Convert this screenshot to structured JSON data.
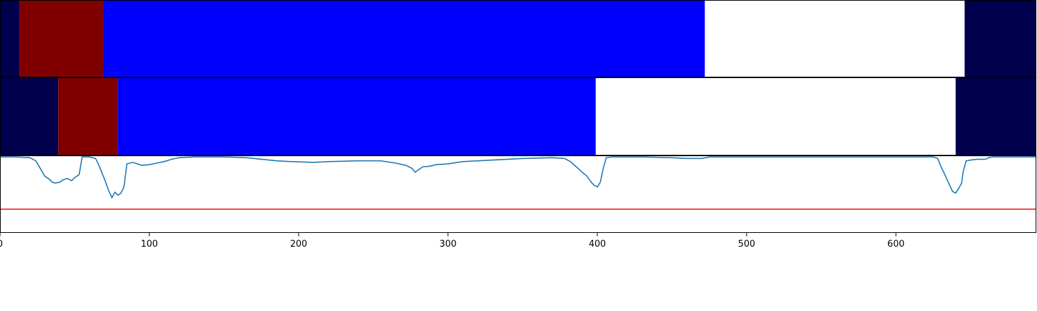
{
  "chart_data": [
    {
      "type": "bar",
      "orientation": "horizontal-segments",
      "xlim": [
        0,
        694
      ],
      "segments": [
        {
          "start": 0,
          "end": 13,
          "color": "#00004c"
        },
        {
          "start": 13,
          "end": 69,
          "color": "#800000"
        },
        {
          "start": 69,
          "end": 472,
          "color": "#0000ff"
        },
        {
          "start": 472,
          "end": 646,
          "color": "#ffffff"
        },
        {
          "start": 646,
          "end": 694,
          "color": "#00004c"
        }
      ]
    },
    {
      "type": "bar",
      "orientation": "horizontal-segments",
      "xlim": [
        0,
        694
      ],
      "segments": [
        {
          "start": 0,
          "end": 39,
          "color": "#00004c"
        },
        {
          "start": 39,
          "end": 79,
          "color": "#800000"
        },
        {
          "start": 79,
          "end": 399,
          "color": "#0000ff"
        },
        {
          "start": 399,
          "end": 640,
          "color": "#ffffff"
        },
        {
          "start": 640,
          "end": 694,
          "color": "#00004c"
        }
      ]
    },
    {
      "type": "line",
      "xlim": [
        0,
        694
      ],
      "ylim": [
        0,
        1
      ],
      "x_ticks": [
        0,
        100,
        200,
        300,
        400,
        500,
        600
      ],
      "x_tick_labels": [
        "0",
        "100",
        "200",
        "300",
        "400",
        "500",
        "600"
      ],
      "threshold": {
        "y": 0.31,
        "color": "#ff0000"
      },
      "line_color": "#1f77b4",
      "points": [
        [
          0,
          0.99
        ],
        [
          10,
          0.99
        ],
        [
          20,
          0.98
        ],
        [
          24,
          0.94
        ],
        [
          27,
          0.84
        ],
        [
          30,
          0.74
        ],
        [
          33,
          0.7
        ],
        [
          35,
          0.66
        ],
        [
          37,
          0.65
        ],
        [
          40,
          0.66
        ],
        [
          42,
          0.69
        ],
        [
          45,
          0.71
        ],
        [
          48,
          0.68
        ],
        [
          50,
          0.72
        ],
        [
          53,
          0.76
        ],
        [
          55,
          0.99
        ],
        [
          60,
          0.99
        ],
        [
          64,
          0.97
        ],
        [
          66,
          0.89
        ],
        [
          70,
          0.7
        ],
        [
          73,
          0.54
        ],
        [
          75,
          0.46
        ],
        [
          77,
          0.53
        ],
        [
          79,
          0.49
        ],
        [
          81,
          0.52
        ],
        [
          83,
          0.6
        ],
        [
          85,
          0.9
        ],
        [
          89,
          0.92
        ],
        [
          92,
          0.9
        ],
        [
          95,
          0.88
        ],
        [
          100,
          0.89
        ],
        [
          105,
          0.91
        ],
        [
          110,
          0.93
        ],
        [
          115,
          0.96
        ],
        [
          120,
          0.98
        ],
        [
          130,
          0.99
        ],
        [
          150,
          0.99
        ],
        [
          165,
          0.98
        ],
        [
          175,
          0.96
        ],
        [
          185,
          0.94
        ],
        [
          195,
          0.93
        ],
        [
          210,
          0.92
        ],
        [
          220,
          0.93
        ],
        [
          240,
          0.94
        ],
        [
          255,
          0.94
        ],
        [
          265,
          0.91
        ],
        [
          272,
          0.88
        ],
        [
          276,
          0.84
        ],
        [
          278,
          0.79
        ],
        [
          280,
          0.82
        ],
        [
          283,
          0.86
        ],
        [
          288,
          0.87
        ],
        [
          292,
          0.89
        ],
        [
          300,
          0.9
        ],
        [
          310,
          0.93
        ],
        [
          330,
          0.95
        ],
        [
          350,
          0.97
        ],
        [
          370,
          0.98
        ],
        [
          378,
          0.97
        ],
        [
          382,
          0.93
        ],
        [
          386,
          0.86
        ],
        [
          390,
          0.79
        ],
        [
          393,
          0.74
        ],
        [
          396,
          0.66
        ],
        [
          398,
          0.62
        ],
        [
          400,
          0.6
        ],
        [
          402,
          0.66
        ],
        [
          404,
          0.84
        ],
        [
          406,
          0.98
        ],
        [
          410,
          0.99
        ],
        [
          430,
          0.99
        ],
        [
          450,
          0.98
        ],
        [
          460,
          0.97
        ],
        [
          470,
          0.97
        ],
        [
          475,
          0.99
        ],
        [
          600,
          0.99
        ],
        [
          625,
          0.99
        ],
        [
          628,
          0.97
        ],
        [
          630,
          0.87
        ],
        [
          633,
          0.75
        ],
        [
          636,
          0.62
        ],
        [
          638,
          0.54
        ],
        [
          640,
          0.52
        ],
        [
          642,
          0.58
        ],
        [
          644,
          0.65
        ],
        [
          645,
          0.8
        ],
        [
          647,
          0.94
        ],
        [
          650,
          0.95
        ],
        [
          655,
          0.96
        ],
        [
          660,
          0.96
        ],
        [
          662,
          0.98
        ],
        [
          665,
          0.99
        ],
        [
          694,
          0.99
        ]
      ]
    }
  ]
}
